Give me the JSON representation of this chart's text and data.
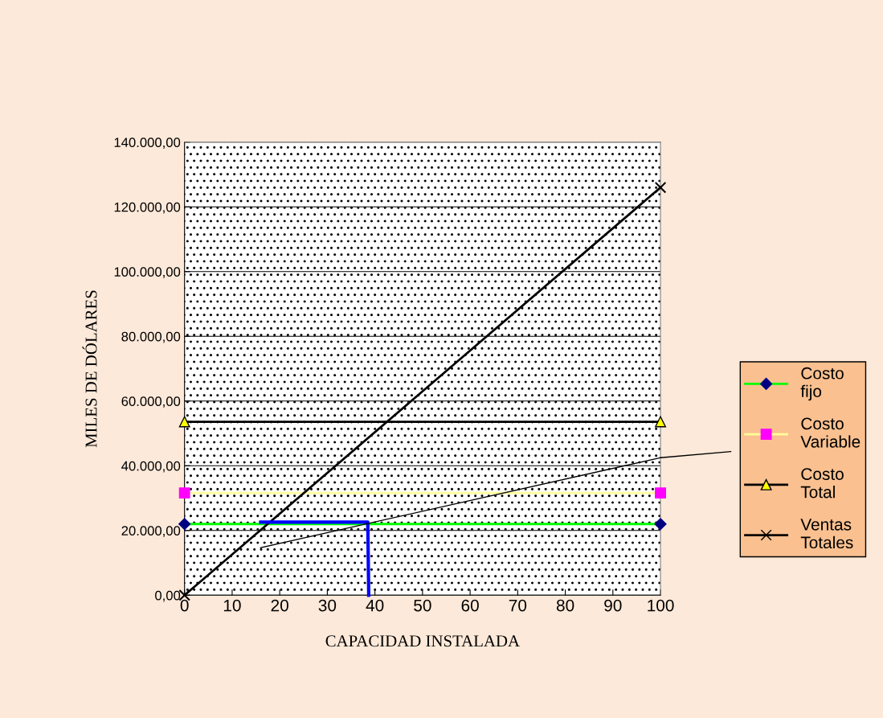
{
  "chart_data": {
    "type": "line",
    "xlabel": "CAPACIDAD INSTALADA",
    "ylabel": "MILES DE DÓLARES",
    "xlim": [
      0,
      100
    ],
    "xticks": [
      0,
      10,
      20,
      30,
      40,
      50,
      60,
      70,
      80,
      90,
      100
    ],
    "ylim": [
      0,
      140000
    ],
    "yticks": [
      {
        "value": 0,
        "label": "0,00"
      },
      {
        "value": 20000,
        "label": "20.000,00"
      },
      {
        "value": 40000,
        "label": "40.000,00"
      },
      {
        "value": 60000,
        "label": "60.000,00"
      },
      {
        "value": 80000,
        "label": "80.000,00"
      },
      {
        "value": 100000,
        "label": "100.000,00"
      },
      {
        "value": 120000,
        "label": "120.000,00"
      },
      {
        "value": 140000,
        "label": "140.000,00"
      }
    ],
    "x": [
      0,
      100
    ],
    "series": [
      {
        "name": "Costo fijo",
        "color": "#00ff00",
        "colors": [
          "#000080",
          "#000080"
        ],
        "marker": "diamond",
        "values": [
          22000,
          22000
        ]
      },
      {
        "name": "Costo Variable",
        "color": "#ffff99",
        "colors": [
          "#ff00ff",
          "#ff00ff"
        ],
        "marker": "square",
        "values": [
          31600,
          31600
        ]
      },
      {
        "name": "Costo Total",
        "color": "#000000",
        "colors": [
          "#ffff00",
          "#ffff00"
        ],
        "marker": "triangle",
        "values": [
          53600,
          53600
        ]
      },
      {
        "name": "Ventas Totales",
        "color": "#000000",
        "colors": [
          "#000000",
          "#000000"
        ],
        "marker": "cross",
        "values": [
          0,
          126000
        ]
      },
      {
        "color": "#0000ff",
        "x": [
          16,
          38.5,
          38.7
        ],
        "values": [
          22600,
          22600,
          0
        ],
        "marker": "none"
      },
      {
        "color": "#000000",
        "x": [
          16,
          100
        ],
        "values": [
          14700,
          42500
        ],
        "marker": "none"
      }
    ],
    "grid": "y",
    "legend": "right"
  }
}
